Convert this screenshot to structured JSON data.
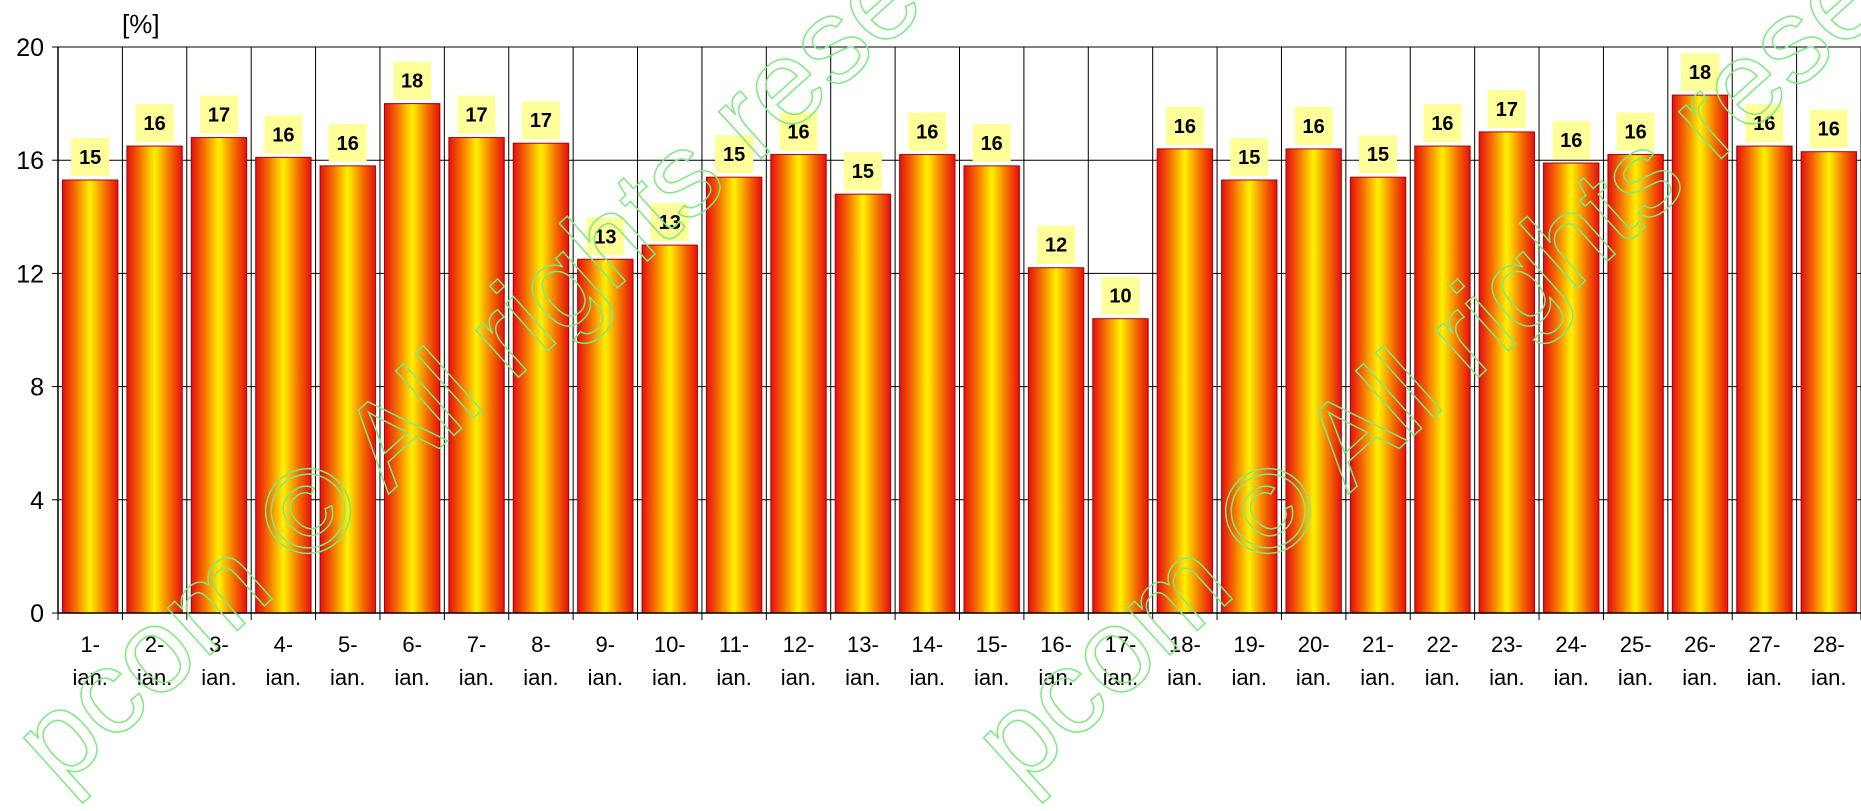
{
  "chart_data": {
    "type": "bar",
    "unit_label": "[%]",
    "ylim": [
      0,
      20
    ],
    "yticks": [
      0,
      4,
      8,
      12,
      16,
      20
    ],
    "grid": true,
    "categories": [
      [
        "1-",
        "ian."
      ],
      [
        "2-",
        "ian."
      ],
      [
        "3-",
        "ian."
      ],
      [
        "4-",
        "ian."
      ],
      [
        "5-",
        "ian."
      ],
      [
        "6-",
        "ian."
      ],
      [
        "7-",
        "ian."
      ],
      [
        "8-",
        "ian."
      ],
      [
        "9-",
        "ian."
      ],
      [
        "10-",
        "ian."
      ],
      [
        "11-",
        "ian."
      ],
      [
        "12-",
        "ian."
      ],
      [
        "13-",
        "ian."
      ],
      [
        "14-",
        "ian."
      ],
      [
        "15-",
        "ian."
      ],
      [
        "16-",
        "ian."
      ],
      [
        "17-",
        "ian."
      ],
      [
        "18-",
        "ian."
      ],
      [
        "19-",
        "ian."
      ],
      [
        "20-",
        "ian."
      ],
      [
        "21-",
        "ian."
      ],
      [
        "22-",
        "ian."
      ],
      [
        "23-",
        "ian."
      ],
      [
        "24-",
        "ian."
      ],
      [
        "25-",
        "ian."
      ],
      [
        "26-",
        "ian."
      ],
      [
        "27-",
        "ian."
      ],
      [
        "28-",
        "ian."
      ]
    ],
    "values": [
      15.3,
      16.5,
      16.8,
      16.1,
      15.8,
      18.0,
      16.8,
      16.6,
      12.5,
      13.0,
      15.4,
      16.2,
      14.8,
      16.2,
      15.8,
      12.2,
      10.4,
      16.4,
      15.3,
      16.4,
      15.4,
      16.5,
      17.0,
      15.9,
      16.2,
      18.3,
      16.5,
      16.3
    ],
    "data_labels": [
      "15",
      "16",
      "17",
      "16",
      "16",
      "18",
      "17",
      "17",
      "13",
      "13",
      "15",
      "16",
      "15",
      "16",
      "16",
      "12",
      "10",
      "16",
      "15",
      "16",
      "15",
      "16",
      "17",
      "16",
      "16",
      "18",
      "16",
      "16"
    ]
  },
  "watermark": {
    "lines": [
      "pcom © All rights rese",
      "pcom © All rights rese"
    ]
  }
}
